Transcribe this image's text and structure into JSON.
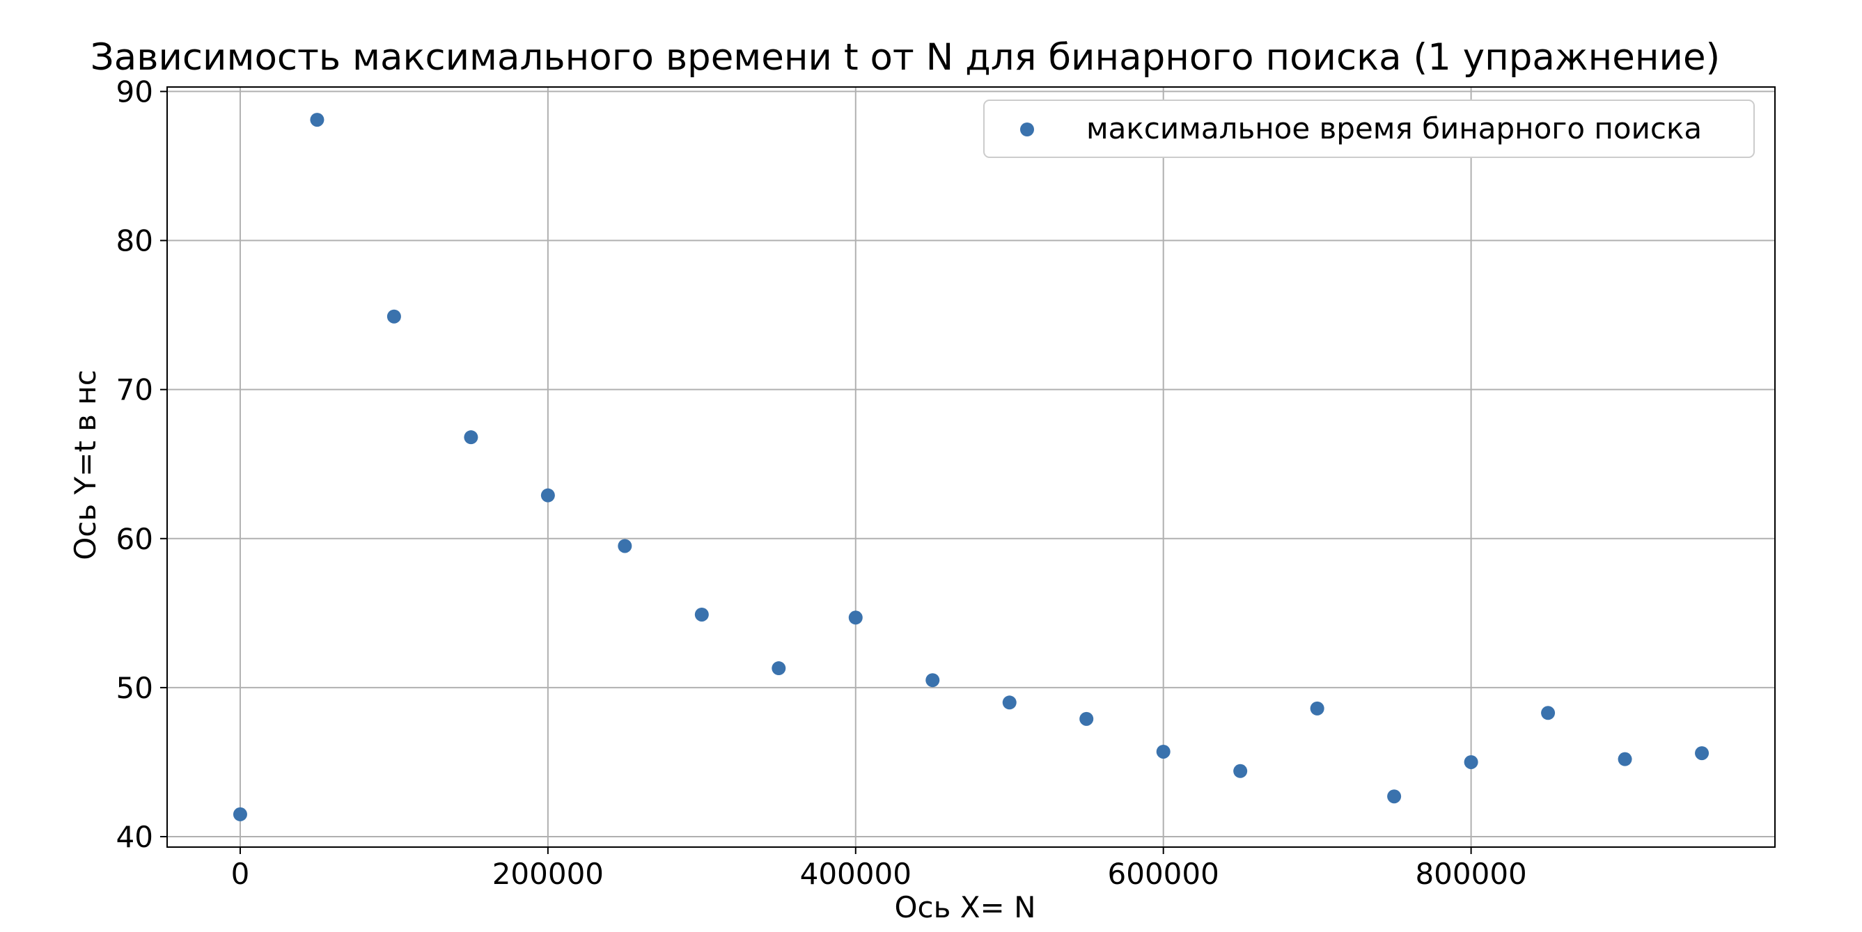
{
  "chart_data": {
    "type": "scatter",
    "title": "Зависимость максимального времени t от N для бинарного поиска (1 упражнение)",
    "xlabel": "Ось X= N",
    "ylabel": "Ось Y=t в нс",
    "xlim": [
      -47500,
      997500
    ],
    "ylim": [
      39.3,
      90.3
    ],
    "xticks": [
      0,
      200000,
      400000,
      600000,
      800000
    ],
    "xtick_labels": [
      "0",
      "200000",
      "400000",
      "600000",
      "800000"
    ],
    "yticks": [
      40,
      50,
      60,
      70,
      80,
      90
    ],
    "ytick_labels": [
      "40",
      "50",
      "60",
      "70",
      "80",
      "90"
    ],
    "grid": true,
    "legend_position": "top-right",
    "series": [
      {
        "name": "максимальное время бинарного поиска",
        "color": "#3a72ad",
        "x": [
          0,
          50000,
          100000,
          150000,
          200000,
          250000,
          300000,
          350000,
          400000,
          450000,
          500000,
          550000,
          600000,
          650000,
          700000,
          750000,
          800000,
          850000,
          900000,
          950000
        ],
        "y": [
          41.5,
          88.1,
          74.9,
          66.8,
          62.9,
          59.5,
          54.9,
          51.3,
          54.7,
          50.5,
          49.0,
          47.9,
          45.7,
          44.4,
          48.6,
          42.7,
          45.0,
          48.3,
          45.2,
          45.6
        ]
      }
    ]
  }
}
